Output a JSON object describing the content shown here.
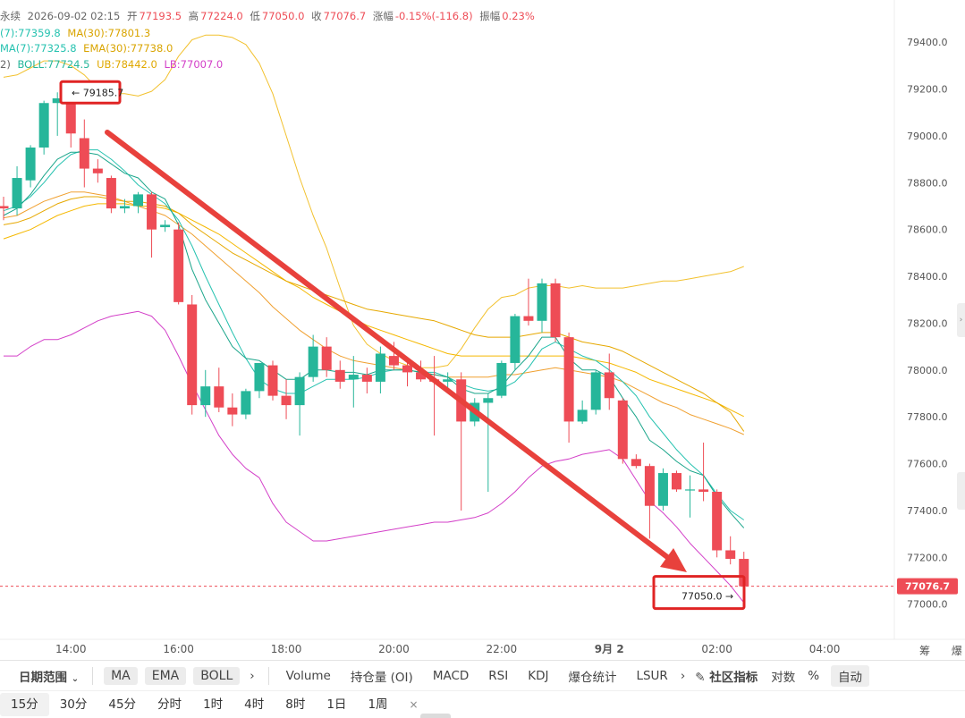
{
  "info_line1": {
    "prefix": "永续",
    "datetime": "2026-09-02 02:15",
    "open_label": "开",
    "open": "77193.5",
    "high_label": "高",
    "high": "77224.0",
    "low_label": "低",
    "low": "77050.0",
    "close_label": "收",
    "close": "77076.7",
    "change_label": "涨幅",
    "change": "-0.15%(-116.8)",
    "amp_label": "振幅",
    "amp": "0.23%"
  },
  "info_line2": {
    "ma7": "(7):77359.8",
    "ma30": "MA(30):77801.3"
  },
  "info_line3": {
    "ema7": "MA(7):77325.8",
    "ema30": "EMA(30):77738.0"
  },
  "info_line4": {
    "boll_prefix": "2)",
    "boll": "BOLL:77724.5",
    "ub": "UB:78442.0",
    "lb": "LB:77007.0"
  },
  "colors": {
    "up": "#26b69a",
    "down": "#ee4c56",
    "ma7": "#26c2b0",
    "ma30": "#f5b800",
    "boll_ub": "#f2c12e",
    "boll_lb": "#d33fc8",
    "boll_mid": "#f0a030",
    "arrow": "#e8413c",
    "high_box": "#e02424",
    "grey_text": "#666666"
  },
  "annotations": {
    "high_marker": "79185.7",
    "low_marker": "77050.0",
    "current_price": "77076.7"
  },
  "chart_data": {
    "type": "candlestick",
    "title": "",
    "y_ticks": [
      "79400.0",
      "79200.0",
      "79000.0",
      "78800.0",
      "78600.0",
      "78400.0",
      "78200.0",
      "78000.0",
      "77800.0",
      "77600.0",
      "77400.0",
      "77200.0",
      "77000.0"
    ],
    "x_ticks": [
      "14:00",
      "16:00",
      "18:00",
      "20:00",
      "22:00",
      "9月 2",
      "02:00",
      "04:00"
    ],
    "ylim": [
      76850,
      79580
    ],
    "interval": "15分",
    "candles": [
      {
        "o": 78700,
        "h": 78740,
        "l": 78640,
        "c": 78690
      },
      {
        "o": 78690,
        "h": 78870,
        "l": 78660,
        "c": 78820
      },
      {
        "o": 78810,
        "h": 78960,
        "l": 78780,
        "c": 78950
      },
      {
        "o": 78950,
        "h": 79150,
        "l": 78920,
        "c": 79140
      },
      {
        "o": 79140,
        "h": 79185.7,
        "l": 79000,
        "c": 79160
      },
      {
        "o": 79150,
        "h": 79170,
        "l": 78950,
        "c": 79010
      },
      {
        "o": 78990,
        "h": 79070,
        "l": 78780,
        "c": 78860
      },
      {
        "o": 78860,
        "h": 78900,
        "l": 78800,
        "c": 78840
      },
      {
        "o": 78820,
        "h": 78830,
        "l": 78670,
        "c": 78690
      },
      {
        "o": 78690,
        "h": 78730,
        "l": 78670,
        "c": 78700
      },
      {
        "o": 78700,
        "h": 78760,
        "l": 78670,
        "c": 78750
      },
      {
        "o": 78750,
        "h": 78760,
        "l": 78480,
        "c": 78600
      },
      {
        "o": 78610,
        "h": 78640,
        "l": 78590,
        "c": 78620
      },
      {
        "o": 78600,
        "h": 78630,
        "l": 78280,
        "c": 78290
      },
      {
        "o": 78280,
        "h": 78320,
        "l": 77810,
        "c": 77850
      },
      {
        "o": 77850,
        "h": 78000,
        "l": 77800,
        "c": 77930
      },
      {
        "o": 77930,
        "h": 78010,
        "l": 77820,
        "c": 77840
      },
      {
        "o": 77840,
        "h": 77900,
        "l": 77760,
        "c": 77810
      },
      {
        "o": 77810,
        "h": 77920,
        "l": 77790,
        "c": 77910
      },
      {
        "o": 77910,
        "h": 78030,
        "l": 77880,
        "c": 78030
      },
      {
        "o": 78020,
        "h": 78040,
        "l": 77870,
        "c": 77890
      },
      {
        "o": 77890,
        "h": 77960,
        "l": 77790,
        "c": 77850
      },
      {
        "o": 77850,
        "h": 77990,
        "l": 77720,
        "c": 77970
      },
      {
        "o": 77970,
        "h": 78150,
        "l": 77950,
        "c": 78100
      },
      {
        "o": 78100,
        "h": 78140,
        "l": 77970,
        "c": 78000
      },
      {
        "o": 78000,
        "h": 78040,
        "l": 77920,
        "c": 77950
      },
      {
        "o": 77960,
        "h": 78060,
        "l": 77840,
        "c": 77980
      },
      {
        "o": 77980,
        "h": 78010,
        "l": 77900,
        "c": 77950
      },
      {
        "o": 77950,
        "h": 78100,
        "l": 77900,
        "c": 78070
      },
      {
        "o": 78060,
        "h": 78120,
        "l": 78000,
        "c": 78020
      },
      {
        "o": 78020,
        "h": 78050,
        "l": 77930,
        "c": 77990
      },
      {
        "o": 77990,
        "h": 78040,
        "l": 77950,
        "c": 77960
      },
      {
        "o": 77960,
        "h": 78060,
        "l": 77720,
        "c": 77950
      },
      {
        "o": 77950,
        "h": 77990,
        "l": 77920,
        "c": 77960
      },
      {
        "o": 77960,
        "h": 77990,
        "l": 77400,
        "c": 77780
      },
      {
        "o": 77780,
        "h": 77880,
        "l": 77760,
        "c": 77860
      },
      {
        "o": 77860,
        "h": 77900,
        "l": 77480,
        "c": 77880
      },
      {
        "o": 77890,
        "h": 78040,
        "l": 77880,
        "c": 78030
      },
      {
        "o": 78030,
        "h": 78240,
        "l": 78000,
        "c": 78230
      },
      {
        "o": 78230,
        "h": 78390,
        "l": 78190,
        "c": 78210
      },
      {
        "o": 78210,
        "h": 78390,
        "l": 78160,
        "c": 78370
      },
      {
        "o": 78370,
        "h": 78390,
        "l": 78120,
        "c": 78140
      },
      {
        "o": 78140,
        "h": 78160,
        "l": 77690,
        "c": 77780
      },
      {
        "o": 77780,
        "h": 77870,
        "l": 77770,
        "c": 77830
      },
      {
        "o": 77830,
        "h": 78000,
        "l": 77810,
        "c": 77990
      },
      {
        "o": 77990,
        "h": 78070,
        "l": 77830,
        "c": 77880
      },
      {
        "o": 77870,
        "h": 77880,
        "l": 77600,
        "c": 77620
      },
      {
        "o": 77620,
        "h": 77640,
        "l": 77580,
        "c": 77590
      },
      {
        "o": 77590,
        "h": 77600,
        "l": 77280,
        "c": 77420
      },
      {
        "o": 77420,
        "h": 77580,
        "l": 77400,
        "c": 77560
      },
      {
        "o": 77560,
        "h": 77570,
        "l": 77480,
        "c": 77490
      },
      {
        "o": 77490,
        "h": 77550,
        "l": 77370,
        "c": 77490
      },
      {
        "o": 77490,
        "h": 77690,
        "l": 77440,
        "c": 77480
      },
      {
        "o": 77480,
        "h": 77490,
        "l": 77200,
        "c": 77230
      },
      {
        "o": 77230,
        "h": 77290,
        "l": 77170,
        "c": 77193.5
      },
      {
        "o": 77193.5,
        "h": 77224,
        "l": 77050,
        "c": 77076.7
      }
    ],
    "ma7": [
      78680,
      78700,
      78740,
      78800,
      78870,
      78920,
      78940,
      78940,
      78900,
      78850,
      78790,
      78750,
      78710,
      78640,
      78530,
      78400,
      78280,
      78160,
      78050,
      77960,
      77920,
      77900,
      77900,
      77930,
      77960,
      77960,
      77960,
      77970,
      77990,
      78000,
      78000,
      77990,
      77990,
      77970,
      77940,
      77920,
      77910,
      77920,
      77950,
      78010,
      78090,
      78120,
      78090,
      78060,
      78040,
      78000,
      77950,
      77890,
      77800,
      77730,
      77660,
      77600,
      77550,
      77470,
      77400,
      77359.8
    ],
    "ma30": [
      78560,
      78580,
      78600,
      78630,
      78660,
      78680,
      78700,
      78710,
      78710,
      78710,
      78700,
      78700,
      78690,
      78670,
      78640,
      78610,
      78580,
      78540,
      78500,
      78460,
      78420,
      78380,
      78350,
      78310,
      78280,
      78250,
      78220,
      78190,
      78170,
      78150,
      78130,
      78110,
      78090,
      78070,
      78060,
      78060,
      78060,
      78060,
      78060,
      78060,
      78060,
      78060,
      78060,
      78050,
      78040,
      78030,
      78010,
      77990,
      77960,
      77940,
      77920,
      77900,
      77880,
      77860,
      77830,
      77801.3
    ],
    "ema7": [
      78660,
      78690,
      78750,
      78830,
      78900,
      78930,
      78930,
      78920,
      78880,
      78840,
      78820,
      78760,
      78730,
      78620,
      78430,
      78300,
      78200,
      78100,
      78050,
      78040,
      78000,
      77960,
      77960,
      78000,
      78000,
      77990,
      77990,
      77980,
      78000,
      78000,
      78000,
      77990,
      77980,
      77970,
      77920,
      77900,
      77900,
      77930,
      78000,
      78060,
      78140,
      78140,
      78050,
      78000,
      78000,
      77970,
      77880,
      77800,
      77700,
      77660,
      77610,
      77570,
      77550,
      77460,
      77390,
      77325.8
    ],
    "ema30": [
      78620,
      78630,
      78650,
      78680,
      78710,
      78730,
      78740,
      78740,
      78730,
      78720,
      78720,
      78710,
      78700,
      78670,
      78620,
      78580,
      78540,
      78500,
      78470,
      78440,
      78410,
      78380,
      78360,
      78340,
      78320,
      78300,
      78280,
      78260,
      78250,
      78240,
      78230,
      78220,
      78210,
      78190,
      78170,
      78150,
      78140,
      78140,
      78140,
      78150,
      78160,
      78160,
      78140,
      78120,
      78110,
      78100,
      78080,
      78050,
      78020,
      77990,
      77960,
      77930,
      77900,
      77860,
      77820,
      77738.0
    ],
    "boll_ub": [
      79250,
      79260,
      79290,
      79320,
      79320,
      79300,
      79260,
      79200,
      79180,
      79180,
      79170,
      79190,
      79240,
      79340,
      79410,
      79430,
      79430,
      79420,
      79390,
      79310,
      79180,
      79000,
      78820,
      78660,
      78520,
      78350,
      78190,
      78110,
      78070,
      78040,
      78020,
      78010,
      78010,
      78020,
      78090,
      78180,
      78260,
      78310,
      78320,
      78350,
      78360,
      78360,
      78350,
      78360,
      78350,
      78350,
      78350,
      78360,
      78370,
      78380,
      78380,
      78390,
      78400,
      78410,
      78420,
      78442.0
    ],
    "boll_mid": [
      78650,
      78660,
      78690,
      78720,
      78740,
      78760,
      78760,
      78750,
      78740,
      78720,
      78700,
      78680,
      78660,
      78620,
      78580,
      78530,
      78480,
      78430,
      78380,
      78330,
      78270,
      78220,
      78170,
      78130,
      78090,
      78060,
      78040,
      78030,
      78020,
      78010,
      78000,
      77990,
      77980,
      77970,
      77970,
      77970,
      77970,
      77980,
      77980,
      77990,
      78000,
      78010,
      78000,
      77990,
      77980,
      77970,
      77950,
      77920,
      77890,
      77860,
      77840,
      77810,
      77790,
      77770,
      77750,
      77724.5
    ],
    "boll_lb": [
      78060,
      78060,
      78100,
      78130,
      78130,
      78150,
      78180,
      78210,
      78230,
      78240,
      78250,
      78230,
      78170,
      78060,
      77940,
      77830,
      77720,
      77640,
      77580,
      77540,
      77430,
      77350,
      77310,
      77270,
      77270,
      77280,
      77290,
      77300,
      77310,
      77320,
      77330,
      77340,
      77350,
      77350,
      77360,
      77370,
      77390,
      77430,
      77480,
      77540,
      77590,
      77610,
      77620,
      77640,
      77650,
      77660,
      77620,
      77530,
      77440,
      77390,
      77330,
      77260,
      77200,
      77140,
      77080,
      77007.0
    ]
  },
  "toolbar": {
    "date_range": "日期范围",
    "ma": "MA",
    "ema": "EMA",
    "boll": "BOLL",
    "more1": "›",
    "volume": "Volume",
    "oi": "持仓量 (OI)",
    "macd": "MACD",
    "rsi": "RSI",
    "kdj": "KDJ",
    "liq": "爆仓统计",
    "lsur": "LSUR",
    "more2": "›",
    "community": "社区指标",
    "log": "对数",
    "pct": "%",
    "auto": "自动"
  },
  "right_bottom": "筹 爆",
  "timeframes": [
    "15分",
    "30分",
    "45分",
    "分时",
    "1时",
    "4时",
    "8时",
    "1日",
    "1周"
  ],
  "tf_close": "×"
}
